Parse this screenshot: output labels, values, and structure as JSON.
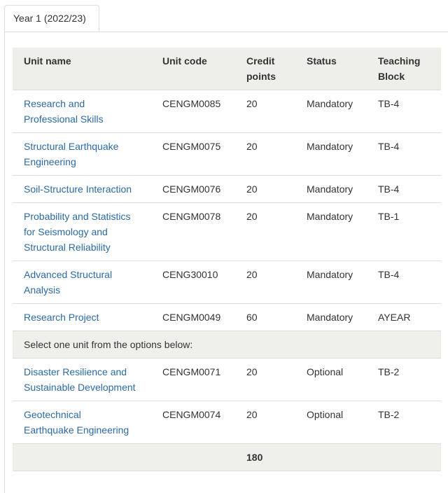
{
  "tab": "Year 1 (2022/23)",
  "table": {
    "headers": [
      "Unit name",
      "Unit code",
      "Credit points",
      "Status",
      "Teaching Block"
    ],
    "rows": [
      [
        "Research and Professional Skills",
        "CENGM0085",
        "20",
        "Mandatory",
        "TB-4"
      ],
      [
        "Structural Earthquake Engineering",
        "CENGM0075",
        "20",
        "Mandatory",
        "TB-4"
      ],
      [
        "Soil-Structure Interaction",
        "CENGM0076",
        "20",
        "Mandatory",
        "TB-4"
      ],
      [
        "Probability and Statistics for Seismology and Structural Reliability",
        "CENGM0078",
        "20",
        "Mandatory",
        "TB-1"
      ],
      [
        "Advanced Structural Analysis",
        "CENG30010",
        "20",
        "Mandatory",
        "TB-4"
      ],
      [
        "Research Project",
        "CENGM0049",
        "60",
        "Mandatory",
        "AYEAR"
      ]
    ],
    "section_note": "Select one unit from the options below:",
    "optional_rows": [
      [
        "Disaster Resilience and Sustainable Development",
        "CENGM0071",
        "20",
        "Optional",
        "TB-2"
      ],
      [
        "Geotechnical Earthquake Engineering",
        "CENGM0074",
        "20",
        "Optional",
        "TB-2"
      ]
    ],
    "total": "180"
  }
}
